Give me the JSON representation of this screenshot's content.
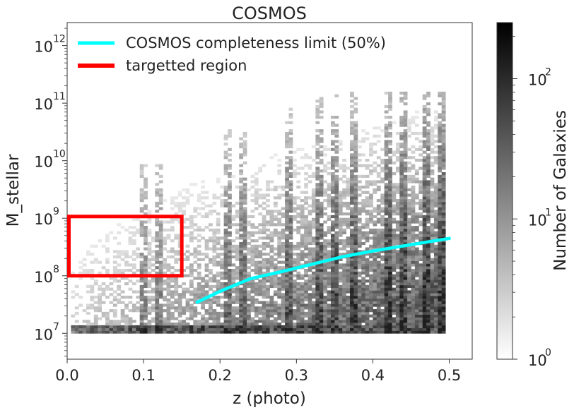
{
  "chart_data": {
    "type": "heatmap",
    "title": "COSMOS",
    "xlabel": "z (photo)",
    "ylabel": "M_stellar",
    "xlim": [
      0.0,
      0.53
    ],
    "ylim_log10": [
      6.55,
      12.4
    ],
    "y_scale": "log",
    "x_ticks": [
      {
        "value": 0.0,
        "label": "0.0"
      },
      {
        "value": 0.1,
        "label": "0.1"
      },
      {
        "value": 0.2,
        "label": "0.2"
      },
      {
        "value": 0.3,
        "label": "0.3"
      },
      {
        "value": 0.4,
        "label": "0.4"
      },
      {
        "value": 0.5,
        "label": "0.5"
      }
    ],
    "y_ticks": [
      {
        "exp": 7,
        "base": "10",
        "sup": "7"
      },
      {
        "exp": 8,
        "base": "10",
        "sup": "8"
      },
      {
        "exp": 9,
        "base": "10",
        "sup": "9"
      },
      {
        "exp": 10,
        "base": "10",
        "sup": "10"
      },
      {
        "exp": 11,
        "base": "10",
        "sup": "11"
      },
      {
        "exp": 12,
        "base": "10",
        "sup": "12"
      }
    ],
    "grid": false,
    "legend_placement": "top-left",
    "series": [
      {
        "name": "COSMOS completeness limit (50%)",
        "kind": "line",
        "color": "#00ffff",
        "points": [
          {
            "x": 0.17,
            "log10_y": 7.54
          },
          {
            "x": 0.2,
            "log10_y": 7.73
          },
          {
            "x": 0.24,
            "log10_y": 7.95
          },
          {
            "x": 0.28,
            "log10_y": 8.07
          },
          {
            "x": 0.32,
            "log10_y": 8.2
          },
          {
            "x": 0.36,
            "log10_y": 8.33
          },
          {
            "x": 0.4,
            "log10_y": 8.43
          },
          {
            "x": 0.45,
            "log10_y": 8.54
          },
          {
            "x": 0.5,
            "log10_y": 8.65
          }
        ]
      },
      {
        "name": "targetted region",
        "kind": "rectangle",
        "color": "#ff0000",
        "x_range": [
          0.0,
          0.15
        ],
        "log10_y_range": [
          8.0,
          9.03
        ]
      }
    ],
    "heatmap": {
      "x_range": [
        0.005,
        0.495
      ],
      "log10_y_range": [
        7.0,
        11.2
      ],
      "dense_floor_log10": 7.05,
      "description_density_increases_with": "z"
    },
    "colorbar": {
      "label": "Number of Galaxies",
      "scale": "log",
      "range_log10": [
        0,
        2.4
      ],
      "ticks": [
        {
          "exp": 0,
          "base": "10",
          "sup": "0"
        },
        {
          "exp": 1,
          "base": "10",
          "sup": "1"
        },
        {
          "exp": 2,
          "base": "10",
          "sup": "2"
        }
      ],
      "colormap": [
        "#ffffff",
        "#000000"
      ]
    }
  }
}
